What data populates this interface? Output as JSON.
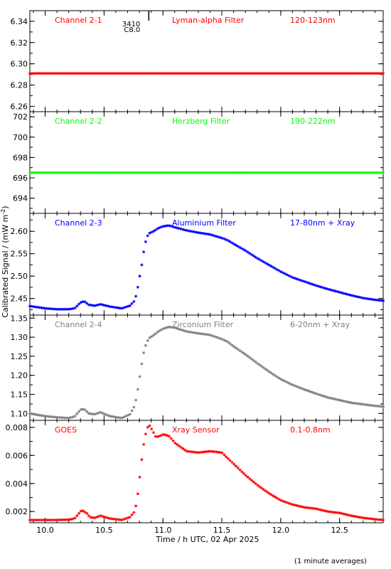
{
  "figure": {
    "xlabel": "Time / h UTC, 02 Apr 2025",
    "ylabel": "Calibrated Signal / (mW m",
    "ylabel_sup": "-2",
    "ylabel_close": ")",
    "footnote": "(1 minute averages)"
  },
  "annotation": {
    "lines": [
      "3410",
      "C8.0"
    ],
    "x": 10.88
  },
  "chart_data": [
    {
      "type": "scatter",
      "channel": "Channel 2-1",
      "filter": "Lyman-alpha Filter",
      "band": "120-123nm",
      "color": "#ff0000",
      "xlim": [
        9.87,
        12.87
      ],
      "ylim": [
        6.255,
        6.35
      ],
      "yticks": [
        6.26,
        6.28,
        6.3,
        6.32,
        6.34
      ],
      "ytick_labels": [
        "6.26",
        "6.28",
        "6.30",
        "6.32",
        "6.34"
      ],
      "series": [
        {
          "x": [
            9.87,
            12.87
          ],
          "y": [
            6.291,
            6.291
          ]
        }
      ]
    },
    {
      "type": "scatter",
      "channel": "Channel 2-2",
      "filter": "Herzberg Filter",
      "band": "190-222nm",
      "color": "#00ff00",
      "xlim": [
        9.87,
        12.87
      ],
      "ylim": [
        692.5,
        702.5
      ],
      "yticks": [
        694,
        696,
        698,
        700,
        702
      ],
      "ytick_labels": [
        "694",
        "696",
        "698",
        "700",
        "702"
      ],
      "series": [
        {
          "x": [
            9.87,
            12.87
          ],
          "y": [
            696.5,
            696.5
          ]
        }
      ]
    },
    {
      "type": "scatter",
      "channel": "Channel 2-3",
      "filter": "Aluminium Filter",
      "band": "17-80nm + Xray",
      "color": "#0000ff",
      "xlim": [
        9.87,
        12.87
      ],
      "ylim": [
        2.413,
        2.64
      ],
      "yticks": [
        2.45,
        2.5,
        2.55,
        2.6
      ],
      "ytick_labels": [
        "2.45",
        "2.50",
        "2.55",
        "2.60"
      ],
      "series": [
        {
          "x": [
            9.87,
            10.0,
            10.1,
            10.2,
            10.25,
            10.3,
            10.33,
            10.37,
            10.42,
            10.47,
            10.55,
            10.65,
            10.72,
            10.76,
            10.78,
            10.8,
            10.82,
            10.84,
            10.86,
            10.88,
            10.92,
            10.96,
            11.0,
            11.05,
            11.1,
            11.2,
            11.3,
            11.4,
            11.5,
            11.55,
            11.6,
            11.7,
            11.8,
            11.9,
            12.0,
            12.1,
            12.2,
            12.3,
            12.4,
            12.5,
            12.6,
            12.7,
            12.8,
            12.87
          ],
          "y": [
            2.433,
            2.428,
            2.426,
            2.426,
            2.428,
            2.441,
            2.444,
            2.436,
            2.434,
            2.437,
            2.432,
            2.428,
            2.434,
            2.445,
            2.465,
            2.495,
            2.525,
            2.56,
            2.585,
            2.595,
            2.6,
            2.607,
            2.611,
            2.613,
            2.609,
            2.602,
            2.597,
            2.593,
            2.585,
            2.58,
            2.572,
            2.557,
            2.54,
            2.525,
            2.51,
            2.497,
            2.488,
            2.479,
            2.471,
            2.464,
            2.457,
            2.451,
            2.447,
            2.445
          ]
        }
      ]
    },
    {
      "type": "scatter",
      "channel": "Channel 2-4",
      "filter": "Zirconium Filter",
      "band": "6-20nm + Xray",
      "color": "#808080",
      "xlim": [
        9.87,
        12.87
      ],
      "ylim": [
        1.082,
        1.358
      ],
      "yticks": [
        1.1,
        1.15,
        1.2,
        1.25,
        1.3,
        1.35
      ],
      "ytick_labels": [
        "1.10",
        "1.15",
        "1.20",
        "1.25",
        "1.30",
        "1.35"
      ],
      "series": [
        {
          "x": [
            9.87,
            10.0,
            10.1,
            10.2,
            10.25,
            10.3,
            10.33,
            10.37,
            10.42,
            10.47,
            10.55,
            10.65,
            10.72,
            10.76,
            10.78,
            10.8,
            10.82,
            10.84,
            10.86,
            10.88,
            10.92,
            10.96,
            11.0,
            11.05,
            11.1,
            11.2,
            11.3,
            11.4,
            11.5,
            11.55,
            11.6,
            11.7,
            11.8,
            11.9,
            12.0,
            12.1,
            12.2,
            12.3,
            12.4,
            12.5,
            12.6,
            12.7,
            12.8,
            12.87
          ],
          "y": [
            1.1,
            1.093,
            1.09,
            1.088,
            1.092,
            1.11,
            1.112,
            1.1,
            1.098,
            1.103,
            1.093,
            1.088,
            1.098,
            1.12,
            1.15,
            1.19,
            1.23,
            1.265,
            1.285,
            1.297,
            1.305,
            1.315,
            1.322,
            1.327,
            1.325,
            1.315,
            1.31,
            1.306,
            1.295,
            1.288,
            1.276,
            1.255,
            1.232,
            1.21,
            1.19,
            1.175,
            1.163,
            1.152,
            1.142,
            1.135,
            1.128,
            1.124,
            1.12,
            1.118
          ]
        }
      ]
    },
    {
      "type": "scatter",
      "channel": "GOES",
      "filter": "Xray Sensor",
      "band": "0.1-0.8nm",
      "color": "#ff0000",
      "xlim": [
        9.87,
        12.87
      ],
      "ylim": [
        0.0012,
        0.0085
      ],
      "yticks": [
        0.002,
        0.004,
        0.006,
        0.008
      ],
      "ytick_labels": [
        "0.002",
        "0.004",
        "0.006",
        "0.008"
      ],
      "series": [
        {
          "x": [
            9.87,
            10.1,
            10.2,
            10.25,
            10.28,
            10.31,
            10.35,
            10.38,
            10.42,
            10.47,
            10.55,
            10.65,
            10.72,
            10.76,
            10.78,
            10.8,
            10.82,
            10.84,
            10.86,
            10.88,
            10.91,
            10.94,
            10.98,
            11.0,
            11.05,
            11.1,
            11.2,
            11.3,
            11.4,
            11.5,
            11.6,
            11.7,
            11.8,
            11.9,
            12.0,
            12.1,
            12.2,
            12.3,
            12.4,
            12.5,
            12.6,
            12.7,
            12.8,
            12.87
          ],
          "y": [
            0.0014,
            0.0014,
            0.00142,
            0.0015,
            0.0018,
            0.0021,
            0.0019,
            0.0016,
            0.00155,
            0.0017,
            0.0015,
            0.0014,
            0.0016,
            0.002,
            0.0028,
            0.0042,
            0.0057,
            0.007,
            0.0078,
            0.0082,
            0.0078,
            0.0073,
            0.0074,
            0.0075,
            0.0074,
            0.0069,
            0.0063,
            0.0062,
            0.0063,
            0.0062,
            0.0054,
            0.0046,
            0.0039,
            0.0033,
            0.0028,
            0.0025,
            0.0023,
            0.0022,
            0.002,
            0.0019,
            0.0017,
            0.00155,
            0.00145,
            0.0014
          ]
        }
      ]
    }
  ]
}
